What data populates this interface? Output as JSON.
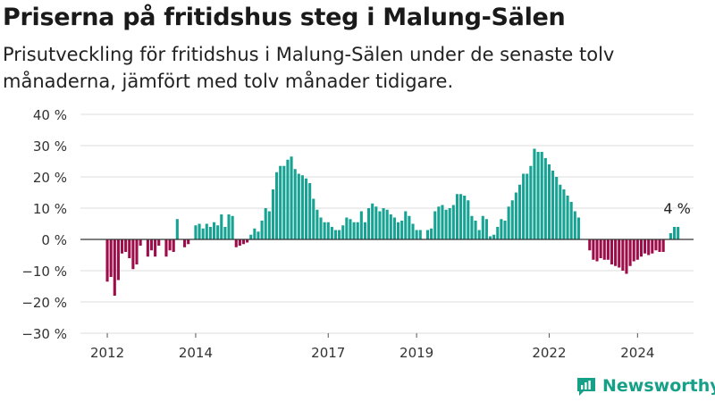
{
  "title": "Priserna på fritidshus steg i Malung-Sälen",
  "subtitle": "Prisutveckling för fritidshus i Malung-Sälen under de senaste tolv månaderna, jämfört med tolv månader tidigare.",
  "brand": "Newsworthy",
  "colors": {
    "positive": "#16a393",
    "negative": "#9c0d4a",
    "grid": "#dddddd",
    "zero": "#333333",
    "brand": "#16a087"
  },
  "chart_data": {
    "type": "bar",
    "ylim": [
      -30,
      40
    ],
    "yticks": [
      -30,
      -20,
      -10,
      0,
      10,
      20,
      30,
      40
    ],
    "ytick_labels": [
      "−30 %",
      "−20 %",
      "−10 %",
      "0 %",
      "10 %",
      "20 %",
      "30 %",
      "40 %"
    ],
    "xtick_labels": [
      {
        "label": "2012",
        "date": "2012-01"
      },
      {
        "label": "2014",
        "date": "2014-01"
      },
      {
        "label": "2017",
        "date": "2017-01"
      },
      {
        "label": "2019",
        "date": "2019-01"
      },
      {
        "label": "2022",
        "date": "2022-01"
      },
      {
        "label": "2024",
        "date": "2024-01"
      }
    ],
    "dates": [
      "2012-01",
      "2012-02",
      "2012-03",
      "2012-04",
      "2012-05",
      "2012-06",
      "2012-07",
      "2012-08",
      "2012-09",
      "2012-10",
      "2012-11",
      "2012-12",
      "2013-01",
      "2013-02",
      "2013-03",
      "2013-04",
      "2013-05",
      "2013-06",
      "2013-07",
      "2013-08",
      "2013-09",
      "2013-10",
      "2013-11",
      "2013-12",
      "2014-01",
      "2014-02",
      "2014-03",
      "2014-04",
      "2014-05",
      "2014-06",
      "2014-07",
      "2014-08",
      "2014-09",
      "2014-10",
      "2014-11",
      "2014-12",
      "2015-01",
      "2015-02",
      "2015-03",
      "2015-04",
      "2015-05",
      "2015-06",
      "2015-07",
      "2015-08",
      "2015-09",
      "2015-10",
      "2015-11",
      "2015-12",
      "2016-01",
      "2016-02",
      "2016-03",
      "2016-04",
      "2016-05",
      "2016-06",
      "2016-07",
      "2016-08",
      "2016-09",
      "2016-10",
      "2016-11",
      "2016-12",
      "2017-01",
      "2017-02",
      "2017-03",
      "2017-04",
      "2017-05",
      "2017-06",
      "2017-07",
      "2017-08",
      "2017-09",
      "2017-10",
      "2017-11",
      "2017-12",
      "2018-01",
      "2018-02",
      "2018-03",
      "2018-04",
      "2018-05",
      "2018-06",
      "2018-07",
      "2018-08",
      "2018-09",
      "2018-10",
      "2018-11",
      "2018-12",
      "2019-01",
      "2019-02",
      "2019-03",
      "2019-04",
      "2019-05",
      "2019-06",
      "2019-07",
      "2019-08",
      "2019-09",
      "2019-10",
      "2019-11",
      "2019-12",
      "2020-01",
      "2020-02",
      "2020-03",
      "2020-04",
      "2020-05",
      "2020-06",
      "2020-07",
      "2020-08",
      "2020-09",
      "2020-10",
      "2020-11",
      "2020-12",
      "2021-01",
      "2021-02",
      "2021-03",
      "2021-04",
      "2021-05",
      "2021-06",
      "2021-07",
      "2021-08",
      "2021-09",
      "2021-10",
      "2021-11",
      "2021-12",
      "2022-01",
      "2022-02",
      "2022-03",
      "2022-04",
      "2022-05",
      "2022-06",
      "2022-07",
      "2022-08",
      "2022-09",
      "2022-10",
      "2022-11",
      "2022-12",
      "2023-01",
      "2023-02",
      "2023-03",
      "2023-04",
      "2023-05",
      "2023-06",
      "2023-07",
      "2023-08",
      "2023-09",
      "2023-10",
      "2023-11",
      "2023-12",
      "2024-01",
      "2024-02",
      "2024-03",
      "2024-04",
      "2024-05",
      "2024-06",
      "2024-07",
      "2024-08",
      "2024-09",
      "2024-10",
      "2024-11",
      "2024-12"
    ],
    "values": [
      -13.5,
      -12,
      -18,
      -13,
      -4.5,
      -4,
      -6,
      -9.5,
      -8,
      -2,
      null,
      -5.5,
      -3.5,
      -5.5,
      -2,
      null,
      -5.5,
      -3.5,
      -4,
      6.5,
      null,
      -2.5,
      -1.5,
      null,
      4.5,
      5,
      3.5,
      5,
      4,
      5.5,
      4.5,
      8,
      4,
      8,
      7.5,
      -2.5,
      -2,
      -1.5,
      -1,
      1.5,
      3.5,
      2.5,
      6,
      10,
      9,
      16,
      21.5,
      23.5,
      23.5,
      25.5,
      26.5,
      22.5,
      21,
      20.5,
      19.5,
      18,
      13,
      9.5,
      7,
      5.5,
      5.5,
      4,
      3,
      3,
      4.5,
      7,
      6.5,
      5.5,
      5.5,
      9,
      5.5,
      10,
      11.5,
      10.5,
      9,
      10,
      9.5,
      8,
      7,
      5.5,
      6,
      9,
      7.5,
      5,
      3,
      3,
      null,
      3,
      3.5,
      9,
      10.5,
      11,
      9.5,
      10,
      11,
      14.5,
      14.5,
      14,
      12.5,
      7.5,
      6,
      3,
      7.5,
      6.5,
      1,
      1.5,
      4,
      6.5,
      6,
      10.5,
      12.5,
      15,
      17.5,
      21,
      21,
      23.5,
      29,
      28,
      28,
      26,
      24,
      22,
      20,
      17.5,
      16,
      14,
      12,
      9,
      7,
      null,
      null,
      -3.5,
      -6.5,
      -7,
      -6,
      -6.5,
      -6.5,
      -8,
      -8.5,
      -9,
      -10,
      -11,
      -8.5,
      -7,
      -6.5,
      -5.5,
      -4.5,
      -5,
      -4.5,
      -3.5,
      -4,
      -4,
      null,
      2,
      4,
      4
    ],
    "annotation": {
      "label": "4 %",
      "date": "2024-12",
      "value": 4
    }
  }
}
